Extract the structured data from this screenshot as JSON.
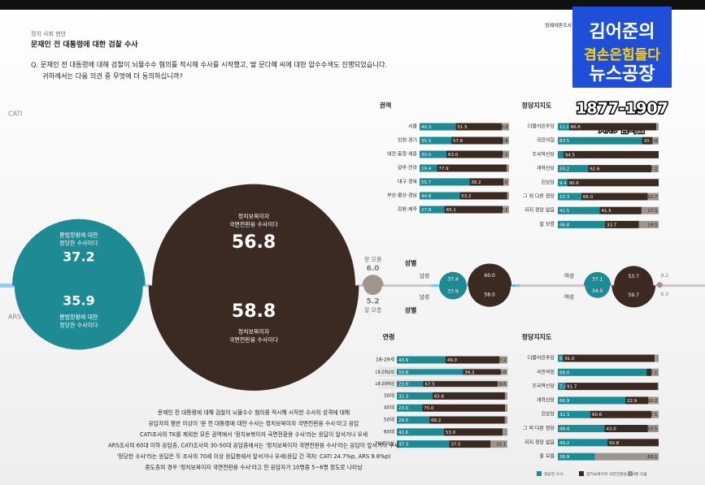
{
  "header": {
    "section": "정치 사회 현안",
    "title": "문재인 전 대통령에 대한 검찰 수사",
    "question": [
      "Q. 문재인 전 대통령에 대해 검찰이 뇌물수수 혐의를 적시해 수사를 시작했고, 딸 문다혜 씨에 대한 압수수색도 진행되었습니다.",
      "귀하께서는 다음 의견 중 무엇에 더 동의하십니까?"
    ]
  },
  "brand": {
    "corner": "정례여론조사",
    "name": "김어준의",
    "slogan": "겸손은힘들다",
    "show": "뉴스공장",
    "phone": "1877-1907",
    "sub": "ARS 멤버십"
  },
  "colors": [
    "#1e8a93",
    "#3b2a22",
    "#9e958d"
  ],
  "main": {
    "series_labels": [
      [
        "불법정황에 대한",
        "정당한 수사이다"
      ],
      [
        "정치보복이자",
        "국면전환용 수사이다"
      ],
      [
        "잘 모름"
      ]
    ],
    "surveys": [
      {
        "name": "CATI",
        "values": [
          37.2,
          56.8,
          6.0
        ],
        "value_labels": [
          "37.2",
          "56.8",
          "6.0"
        ]
      },
      {
        "name": "ARS",
        "values": [
          35.9,
          58.8,
          5.2
        ],
        "value_labels": [
          "35.9",
          "58.8",
          "5.2"
        ]
      }
    ]
  },
  "panels": [
    {
      "title": "권역",
      "rows": [
        {
          "label": "서울",
          "values": [
            40.3,
            51.5,
            8.3
          ],
          "value_labels": [
            "40.3",
            "51.5",
            "8.3"
          ]
        },
        {
          "label": "인천·경기",
          "values": [
            35.5,
            57.6,
            6.9
          ],
          "value_labels": [
            "35.5",
            "57.6",
            "6.9"
          ]
        },
        {
          "label": "대전·충청·세종",
          "values": [
            30.0,
            63.0,
            7.1
          ],
          "value_labels": [
            "30.0",
            "63.0",
            "7.1"
          ]
        },
        {
          "label": "광주·전라",
          "values": [
            19.4,
            77.9,
            2.7
          ],
          "value_labels": [
            "19.4",
            "77.9",
            null
          ]
        },
        {
          "label": "대구·경북",
          "values": [
            55.7,
            38.2,
            6.0
          ],
          "value_labels": [
            "55.7",
            "38.2",
            "6.0"
          ]
        },
        {
          "label": "부산·울산·경남",
          "values": [
            44.8,
            53.2,
            2.0
          ],
          "value_labels": [
            "44.8",
            "53.2",
            null
          ]
        },
        {
          "label": "강원·제주",
          "values": [
            27.8,
            65.1,
            7.1
          ],
          "value_labels": [
            "27.8",
            "65.1",
            "7.1"
          ]
        }
      ]
    },
    {
      "title": "정당지지도",
      "rows": [
        {
          "label": "더불어민주당",
          "values": [
            11.0,
            86.6,
            2.4
          ],
          "value_labels": [
            "11.0",
            "86.6",
            null
          ]
        },
        {
          "label": "국민의힘",
          "values": [
            83.5,
            10.5,
            6.0
          ],
          "value_labels": [
            "83.5",
            "10.5",
            "6.0"
          ]
        },
        {
          "label": "조국혁신당",
          "values": [
            5.5,
            94.5,
            0
          ],
          "value_labels": [
            null,
            "94.5",
            null
          ]
        },
        {
          "label": "개혁신당",
          "values": [
            30.2,
            62.6,
            7.2
          ],
          "value_labels": [
            "30.2",
            "62.6",
            "7.2"
          ]
        },
        {
          "label": "진보당",
          "values": [
            9.4,
            90.6,
            0
          ],
          "value_labels": [
            "9.4",
            "90.6",
            null
          ]
        },
        {
          "label": "그 외 다른 정당",
          "values": [
            23.3,
            66.0,
            10.7
          ],
          "value_labels": [
            "23.3",
            "66.0",
            "10.7"
          ]
        },
        {
          "label": "지지 정당 없음",
          "values": [
            41.5,
            41.5,
            17.1
          ],
          "value_labels": [
            "41.5",
            "41.5",
            "17.1"
          ]
        },
        {
          "label": "잘 모름",
          "values": [
            46.8,
            33.7,
            19.5
          ],
          "value_labels": [
            "46.8",
            "33.7",
            "19.5"
          ]
        }
      ]
    },
    {
      "title": "연령",
      "rows": [
        {
          "label": "18-29세",
          "values": [
            43.9,
            49.0,
            7.2
          ],
          "value_labels": [
            "43.9",
            "49.0",
            "7.2"
          ]
        },
        {
          "label": "18-29남성",
          "sub": true,
          "values": [
            59.8,
            34.2,
            6.0
          ],
          "value_labels": [
            "59.8",
            "34.2",
            "6.0"
          ]
        },
        {
          "label": "18-29여성",
          "sub": true,
          "values": [
            23.9,
            67.5,
            8.6
          ],
          "value_labels": [
            "23.9",
            "67.5",
            "8.6"
          ]
        },
        {
          "label": "30대",
          "values": [
            32.3,
            65.6,
            2.1
          ],
          "value_labels": [
            "32.3",
            "65.6",
            null
          ]
        },
        {
          "label": "40대",
          "values": [
            23.0,
            75.0,
            2.0
          ],
          "value_labels": [
            "23.0",
            "75.0",
            null
          ]
        },
        {
          "label": "50대",
          "values": [
            29.5,
            68.2,
            2.3
          ],
          "value_labels": [
            "29.5",
            "68.2",
            null
          ]
        },
        {
          "label": "60대",
          "values": [
            42.6,
            53.0,
            4.4
          ],
          "value_labels": [
            "42.6",
            "53.0",
            null
          ]
        },
        {
          "label": "70세이상",
          "values": [
            47.3,
            37.5,
            15.1
          ],
          "value_labels": [
            "47.3",
            "37.5",
            "15.1"
          ]
        }
      ]
    },
    {
      "title": "정당지지도",
      "rows": [
        {
          "label": "더불어민주당",
          "values": [
            5.1,
            91.0,
            3.9
          ],
          "value_labels": [
            "5.1",
            "91.0",
            null
          ]
        },
        {
          "label": "국민의힘",
          "values": [
            88.0,
            4.9,
            7.1
          ],
          "value_labels": [
            "88.0",
            null,
            "7.1"
          ]
        },
        {
          "label": "조국혁신당",
          "values": [
            7.4,
            91.7,
            0.9
          ],
          "value_labels": [
            "7.4",
            "91.7",
            null
          ]
        },
        {
          "label": "개혁신당",
          "values": [
            66.9,
            22.9,
            10.2
          ],
          "value_labels": [
            "66.9",
            "22.9",
            "10.2"
          ]
        },
        {
          "label": "진보당",
          "values": [
            32.3,
            60.6,
            7.1
          ],
          "value_labels": [
            "32.3",
            "60.6",
            "7.1"
          ]
        },
        {
          "label": "그 외 다른 정당",
          "values": [
            46.4,
            43.0,
            10.5
          ],
          "value_labels": [
            "46.4",
            "43.0",
            "10.5"
          ]
        },
        {
          "label": "지지 정당 없음",
          "values": [
            49.2,
            50.8,
            0
          ],
          "value_labels": [
            "49.2",
            "50.8",
            null
          ]
        },
        {
          "label": "잘 모름",
          "values": [
            36.9,
            0,
            63.1
          ],
          "value_labels": [
            "36.9",
            null,
            "63.1"
          ]
        }
      ]
    }
  ],
  "gender": {
    "title": "성별",
    "rows": [
      {
        "label": "남성",
        "surveys": [
          {
            "values": [
              37.4,
              60.0,
              2.6
            ],
            "value_labels": [
              "37.4",
              "60.0",
              null
            ]
          },
          {
            "values": [
              37.9,
              58.0,
              4.1
            ],
            "value_labels": [
              "37.9",
              "58.0",
              null
            ]
          }
        ]
      },
      {
        "label": "여성",
        "surveys": [
          {
            "values": [
              37.1,
              53.7,
              9.2
            ],
            "value_labels": [
              "37.1",
              "53.7",
              "9.2"
            ]
          },
          {
            "values": [
              34.0,
              59.7,
              6.3
            ],
            "value_labels": [
              "34.0",
              "59.7",
              "6.3"
            ]
          }
        ]
      }
    ]
  },
  "legend": [
    "정당한 수사",
    "정치보복이자 국면전환용 수사",
    "잘 모름"
  ],
  "summary": [
    "문재인 전 대통령에 대해 검찰이 뇌물수수 혐의를 적시해 시작한 수사의 성격에 대해",
    "응답자의 절반 이상이 '문 전 대통령에 대한 수사는 정치보복이자 국면전환용 수사'라고 응답",
    "CATI조사의 TK를 제외한 모든 권역에서 '정치보복이자 국면전환용 수사'라는 응답이 앞서거나 우세",
    "ARS조사의 60대 이하 응답층, CATI조사의 30-50대 응답층에서는 '정치보복이자 국면전환용 수사'라는 응답이 앞서거나 우세",
    "'정당한 수사'라는 응답은 두 조사의 70세 이상 응답층에서 앞서거나 우세(응답 간 격차: CATI 24.7%p, ARS 9.8%p)",
    "중도층의 경우 '정치보복이자 국면전환용 수사'라고 한 응답자가 10명중 5~6명 정도로 나타남"
  ]
}
